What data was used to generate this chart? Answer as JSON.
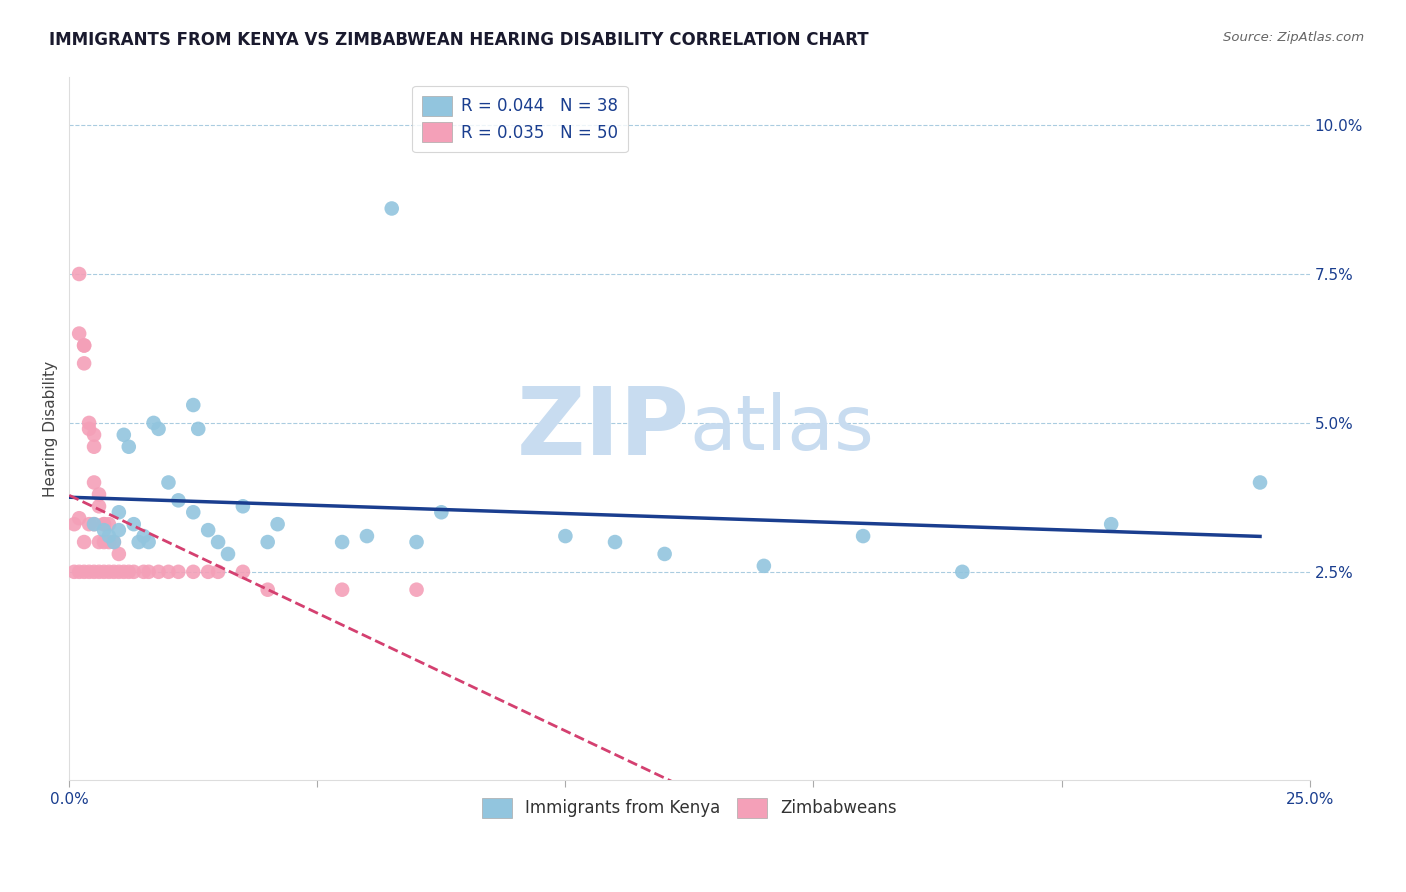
{
  "title": "IMMIGRANTS FROM KENYA VS ZIMBABWEAN HEARING DISABILITY CORRELATION CHART",
  "source": "Source: ZipAtlas.com",
  "ylabel": "Hearing Disability",
  "xlim": [
    0.0,
    0.25
  ],
  "ylim": [
    -0.01,
    0.108
  ],
  "legend_kenya_r": "R = 0.044",
  "legend_kenya_n": "N = 38",
  "legend_zimb_r": "R = 0.035",
  "legend_zimb_n": "N = 50",
  "color_kenya": "#92C5DE",
  "color_zimb": "#F4A0B8",
  "color_kenya_line": "#1A3E8F",
  "color_zimb_line": "#D44070",
  "background_color": "#FFFFFF",
  "grid_color": "#AACCE0",
  "watermark_color": "#C8DCF0",
  "kenya_x": [
    0.005,
    0.007,
    0.008,
    0.009,
    0.01,
    0.01,
    0.011,
    0.012,
    0.013,
    0.014,
    0.015,
    0.016,
    0.017,
    0.018,
    0.02,
    0.022,
    0.025,
    0.025,
    0.026,
    0.028,
    0.03,
    0.032,
    0.035,
    0.04,
    0.042,
    0.055,
    0.06,
    0.065,
    0.07,
    0.075,
    0.1,
    0.11,
    0.12,
    0.14,
    0.16,
    0.18,
    0.21,
    0.24
  ],
  "kenya_y": [
    0.033,
    0.032,
    0.031,
    0.03,
    0.035,
    0.032,
    0.048,
    0.046,
    0.033,
    0.03,
    0.031,
    0.03,
    0.05,
    0.049,
    0.04,
    0.037,
    0.035,
    0.053,
    0.049,
    0.032,
    0.03,
    0.028,
    0.036,
    0.03,
    0.033,
    0.03,
    0.031,
    0.086,
    0.03,
    0.035,
    0.031,
    0.03,
    0.028,
    0.026,
    0.031,
    0.025,
    0.033,
    0.04
  ],
  "zimb_x": [
    0.001,
    0.001,
    0.002,
    0.002,
    0.002,
    0.002,
    0.003,
    0.003,
    0.003,
    0.003,
    0.003,
    0.004,
    0.004,
    0.004,
    0.004,
    0.005,
    0.005,
    0.005,
    0.005,
    0.005,
    0.006,
    0.006,
    0.006,
    0.006,
    0.007,
    0.007,
    0.007,
    0.007,
    0.008,
    0.008,
    0.008,
    0.009,
    0.009,
    0.01,
    0.01,
    0.011,
    0.012,
    0.013,
    0.015,
    0.016,
    0.018,
    0.02,
    0.022,
    0.025,
    0.028,
    0.03,
    0.035,
    0.04,
    0.055,
    0.07
  ],
  "zimb_y": [
    0.033,
    0.025,
    0.075,
    0.065,
    0.034,
    0.025,
    0.063,
    0.063,
    0.06,
    0.03,
    0.025,
    0.05,
    0.049,
    0.033,
    0.025,
    0.048,
    0.046,
    0.04,
    0.033,
    0.025,
    0.038,
    0.036,
    0.03,
    0.025,
    0.033,
    0.033,
    0.03,
    0.025,
    0.033,
    0.03,
    0.025,
    0.03,
    0.025,
    0.028,
    0.025,
    0.025,
    0.025,
    0.025,
    0.025,
    0.025,
    0.025,
    0.025,
    0.025,
    0.025,
    0.025,
    0.025,
    0.025,
    0.022,
    0.022,
    0.022
  ],
  "title_fontsize": 12,
  "axis_label_fontsize": 11,
  "tick_fontsize": 11,
  "legend_fontsize": 12
}
